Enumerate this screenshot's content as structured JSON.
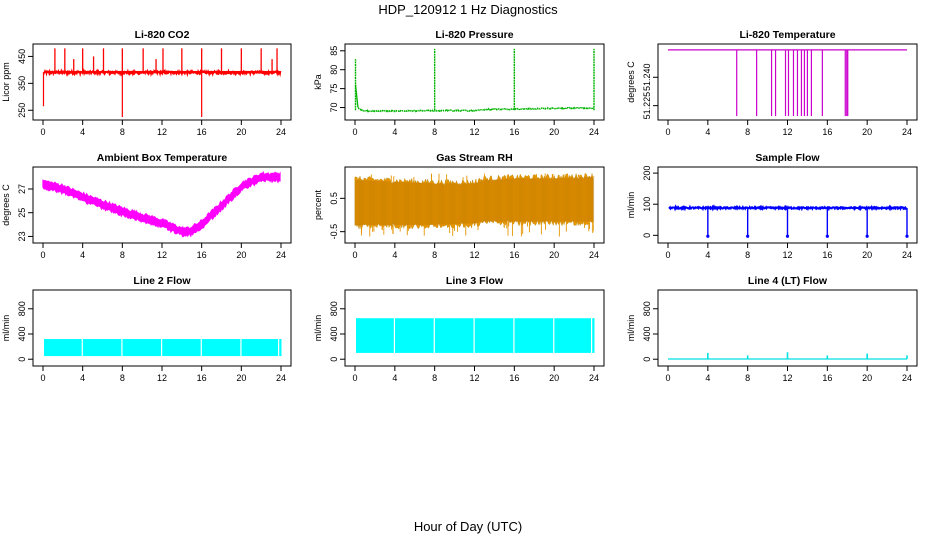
{
  "page": {
    "title": "HDP_120912  1 Hz Diagnostics",
    "xlabel": "Hour of Day (UTC)"
  },
  "chart_data": [
    {
      "type": "line",
      "title": "Li-820 CO2",
      "ylabel": "Licor ppm",
      "color": "#ff0000",
      "xlim": [
        0,
        24
      ],
      "ylim": [
        225,
        485
      ],
      "xticks": [
        "0",
        "4",
        "8",
        "12",
        "16",
        "20",
        "24"
      ],
      "yticks": [
        250,
        350,
        450
      ],
      "series": [
        {
          "baseline": 390,
          "noise": 6,
          "x_start": 0.05,
          "x_end": 24.0,
          "spikes": [
            {
              "x": 1.2,
              "y": 480
            },
            {
              "x": 2.2,
              "y": 480
            },
            {
              "x": 3.1,
              "y": 440
            },
            {
              "x": 4.0,
              "y": 480
            },
            {
              "x": 5.1,
              "y": 450
            },
            {
              "x": 6.1,
              "y": 480
            },
            {
              "x": 8.0,
              "y": 480
            },
            {
              "x": 10.1,
              "y": 480
            },
            {
              "x": 11.4,
              "y": 440
            },
            {
              "x": 12.1,
              "y": 480
            },
            {
              "x": 14.0,
              "y": 480
            },
            {
              "x": 16.0,
              "y": 480
            },
            {
              "x": 18.0,
              "y": 480
            },
            {
              "x": 20.0,
              "y": 480
            },
            {
              "x": 22.0,
              "y": 480
            },
            {
              "x": 23.1,
              "y": 440
            },
            {
              "x": 23.6,
              "y": 480
            }
          ],
          "dips": [
            {
              "x": 0.05,
              "y": 265
            },
            {
              "x": 8.0,
              "y": 225
            },
            {
              "x": 16.0,
              "y": 225
            }
          ]
        }
      ]
    },
    {
      "type": "line",
      "title": "Li-820 Pressure",
      "ylabel": "kPa",
      "color": "#00b400",
      "xlim": [
        0,
        24
      ],
      "ylim": [
        67.5,
        86
      ],
      "xticks": [
        "0",
        "4",
        "8",
        "12",
        "16",
        "20",
        "24"
      ],
      "yticks": [
        70,
        75,
        80,
        85
      ],
      "series": [
        {
          "x": [
            0.05,
            1.0,
            4.0,
            8.0,
            12.0,
            13.2,
            16.0,
            20.0,
            24.0
          ],
          "y": [
            70.0,
            69.1,
            69.1,
            69.2,
            69.2,
            69.5,
            69.6,
            69.8,
            69.9
          ],
          "spikes": [
            {
              "x": 0.05,
              "y": 82.8
            },
            {
              "x": 8.0,
              "y": 85.5
            },
            {
              "x": 16.0,
              "y": 85.5
            },
            {
              "x": 24.0,
              "y": 85.5
            }
          ]
        }
      ]
    },
    {
      "type": "line",
      "title": "Li-820 Temperature",
      "ylabel": "degrees C",
      "color": "#cc00cc",
      "xlim": [
        0,
        24
      ],
      "ylim": [
        51.219,
        51.256
      ],
      "xticks": [
        "0",
        "4",
        "8",
        "12",
        "16",
        "20",
        "24"
      ],
      "yticks": [
        51.225,
        51.24
      ],
      "ytick_labels": [
        "51.225",
        "51.240"
      ],
      "series": [
        {
          "baseline": 51.2545,
          "dip_to": 51.2195,
          "dips_x": [
            6.9,
            8.9,
            10.4,
            10.8,
            11.8,
            12.1,
            12.6,
            13.0,
            13.4,
            13.7,
            14.0,
            14.4,
            15.5,
            17.8,
            17.95,
            18.05
          ]
        }
      ]
    },
    {
      "type": "line",
      "title": "Ambient Box Temperature",
      "ylabel": "degrees C",
      "color": "#ff00ff",
      "xlim": [
        0,
        24
      ],
      "ylim": [
        22.7,
        28.6
      ],
      "xticks": [
        "0",
        "4",
        "8",
        "12",
        "16",
        "20",
        "24"
      ],
      "yticks": [
        23,
        25,
        27
      ],
      "series": [
        {
          "x": [
            0,
            2,
            4,
            6,
            8,
            10,
            12,
            14,
            14.8,
            16,
            18,
            20,
            22,
            24
          ],
          "y": [
            27.4,
            27.0,
            26.3,
            25.7,
            25.1,
            24.6,
            24.1,
            23.4,
            23.4,
            24.0,
            25.6,
            27.2,
            28.0,
            28.0
          ],
          "band": 0.3
        }
      ]
    },
    {
      "type": "line",
      "title": "Gas Stream RH",
      "ylabel": "percent",
      "color": "#e69500",
      "xlim": [
        0,
        24
      ],
      "ylim": [
        -0.75,
        1.35
      ],
      "xticks": [
        "0",
        "4",
        "8",
        "12",
        "16",
        "20",
        "24"
      ],
      "yticks": [
        -0.5,
        0.5
      ],
      "ytick_labels": [
        "-0.5",
        "0.5"
      ],
      "series": [
        {
          "x": [
            0,
            4,
            8,
            12,
            13,
            16,
            20,
            24
          ],
          "lower": [
            -0.3,
            -0.3,
            -0.3,
            -0.25,
            -0.2,
            -0.2,
            -0.2,
            -0.2
          ],
          "upper": [
            1.05,
            1.0,
            0.95,
            0.95,
            1.05,
            1.1,
            1.1,
            1.15
          ],
          "outer_low": -0.65,
          "outer_high": 1.25
        }
      ]
    },
    {
      "type": "line",
      "title": "Sample Flow",
      "ylabel": "ml/min",
      "color": "#0000ff",
      "xlim": [
        0,
        24
      ],
      "ylim": [
        -15,
        210
      ],
      "xticks": [
        "0",
        "4",
        "8",
        "12",
        "16",
        "20",
        "24"
      ],
      "yticks": [
        0,
        100,
        200
      ],
      "series": [
        {
          "baseline": 88,
          "dips": [
            {
              "x": 4.0,
              "y": -3
            },
            {
              "x": 8.0,
              "y": -3
            },
            {
              "x": 12.0,
              "y": -3
            },
            {
              "x": 16.0,
              "y": -3
            },
            {
              "x": 20.0,
              "y": -3
            },
            {
              "x": 24.0,
              "y": -3
            }
          ]
        }
      ]
    },
    {
      "type": "area",
      "title": "Line 2 Flow",
      "ylabel": "ml/min",
      "color": "#00ffff",
      "xlim": [
        0,
        24
      ],
      "ylim": [
        -60,
        1050
      ],
      "xticks": [
        "0",
        "4",
        "8",
        "12",
        "16",
        "20",
        "24"
      ],
      "yticks": [
        0,
        400,
        800
      ],
      "series": [
        {
          "x_start": 0.1,
          "x_end": 24.0,
          "low": 50,
          "high": 320,
          "gaps": [
            3.9,
            7.9,
            11.9,
            15.9,
            19.9,
            23.7
          ]
        }
      ]
    },
    {
      "type": "area",
      "title": "Line 3 Flow",
      "ylabel": "ml/min",
      "color": "#00ffff",
      "xlim": [
        0,
        24
      ],
      "ylim": [
        -60,
        1050
      ],
      "xticks": [
        "0",
        "4",
        "8",
        "12",
        "16",
        "20",
        "24"
      ],
      "yticks": [
        0,
        400,
        800
      ],
      "series": [
        {
          "x_start": 0.1,
          "x_end": 24.0,
          "low": 100,
          "high": 650,
          "gaps": [
            3.9,
            7.9,
            11.9,
            15.9,
            19.9,
            23.7
          ]
        }
      ]
    },
    {
      "type": "line",
      "title": "Line 4 (LT) Flow",
      "ylabel": "ml/min",
      "color": "#00e0e0",
      "xlim": [
        0,
        24
      ],
      "ylim": [
        -60,
        1050
      ],
      "xticks": [
        "0",
        "4",
        "8",
        "12",
        "16",
        "20",
        "24"
      ],
      "yticks": [
        0,
        400,
        800
      ],
      "series": [
        {
          "baseline": 3,
          "spikes": [
            {
              "x": 4.0,
              "y": 100
            },
            {
              "x": 8.0,
              "y": 60
            },
            {
              "x": 12.0,
              "y": 110
            },
            {
              "x": 16.0,
              "y": 60
            },
            {
              "x": 20.0,
              "y": 90
            },
            {
              "x": 24.0,
              "y": 60
            }
          ]
        }
      ]
    }
  ]
}
